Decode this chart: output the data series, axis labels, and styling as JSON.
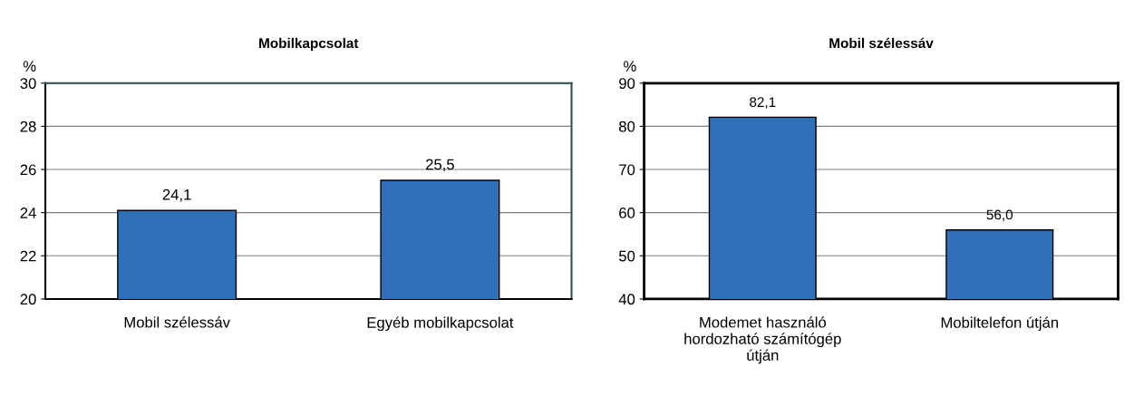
{
  "chart_data": [
    {
      "type": "bar",
      "title": "Mobilkapcsolat",
      "ylabel": "%",
      "categories": [
        "Mobil szélessáv",
        "Egyéb mobilkapcsolat"
      ],
      "values": [
        24.1,
        25.5
      ],
      "value_labels": [
        "24,1",
        "25,5"
      ],
      "color": "#3070b8",
      "ylim": [
        20,
        30
      ],
      "yticks": [
        20,
        22,
        24,
        26,
        28,
        30
      ],
      "grid": "y",
      "legend": false
    },
    {
      "type": "bar",
      "title": "Mobil szélessáv",
      "ylabel": "%",
      "categories": [
        "Modemet használó\nhordozható számítógép\nútján",
        "Mobiltelefon útján"
      ],
      "values": [
        82.1,
        56.0
      ],
      "value_labels": [
        "82,1",
        "56,0"
      ],
      "color": "#3070b8",
      "ylim": [
        40,
        90
      ],
      "yticks": [
        40,
        50,
        60,
        70,
        80,
        90
      ],
      "grid": "y",
      "legend": false
    }
  ]
}
